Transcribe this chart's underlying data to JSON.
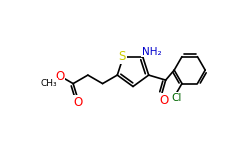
{
  "bg_color": "#ffffff",
  "bond_color": "#000000",
  "bond_width": 1.2,
  "atom_colors": {
    "S": "#cccc00",
    "O": "#ff0000",
    "N": "#0000cc",
    "Cl": "#006600",
    "C": "#000000"
  },
  "font_size": 7.5
}
